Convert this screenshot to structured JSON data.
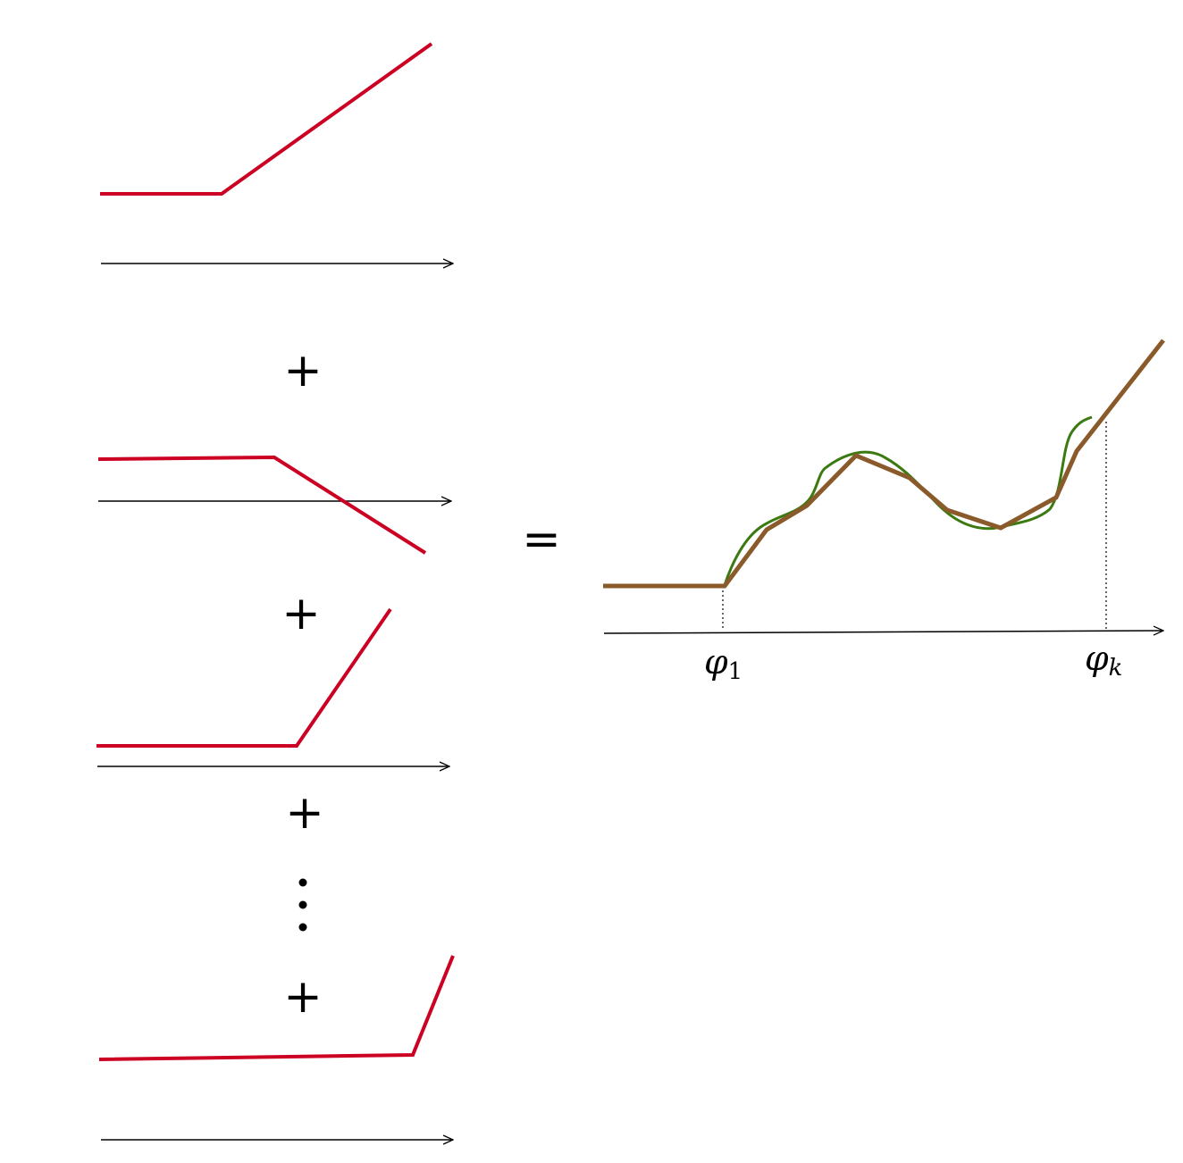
{
  "operators": {
    "plus": "+",
    "equals": "="
  },
  "labels": {
    "phi_1": {
      "symbol": "φ",
      "subscript": "1"
    },
    "phi_k": {
      "symbol": "φ",
      "subscript": "k"
    }
  },
  "colors": {
    "relu": "#cc0022",
    "approximation": "#8b5a2b",
    "target": "#3a7a10",
    "axis": "#000000"
  },
  "icons": {
    "ellipsis": "vertical-ellipsis"
  }
}
